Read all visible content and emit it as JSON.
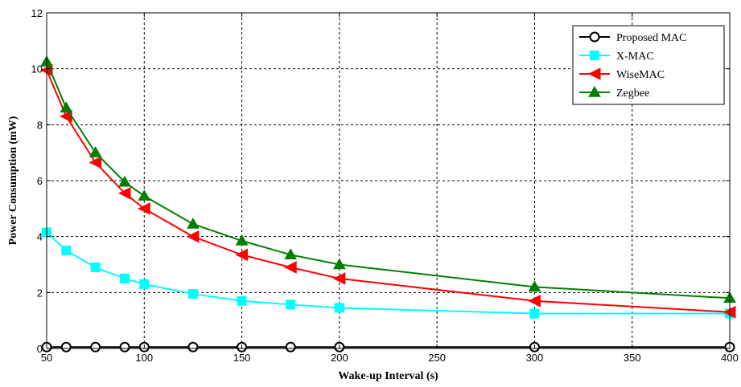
{
  "chart_data": {
    "type": "line",
    "title": "",
    "xlabel": "Wake-up Interval (s)",
    "ylabel": "Power Consumption (mW)",
    "xlim": [
      50,
      400
    ],
    "ylim": [
      0,
      12
    ],
    "xticks": [
      50,
      100,
      150,
      200,
      250,
      300,
      350,
      400
    ],
    "yticks": [
      0,
      2,
      4,
      6,
      8,
      10,
      12
    ],
    "grid": true,
    "legend_position": "top-right",
    "x": [
      50,
      60,
      75,
      90,
      100,
      125,
      150,
      175,
      200,
      300,
      400
    ],
    "series": [
      {
        "name": "Proposed MAC",
        "color": "#000000",
        "marker": "circle",
        "values": [
          0.05,
          0.05,
          0.05,
          0.05,
          0.05,
          0.05,
          0.05,
          0.05,
          0.05,
          0.05,
          0.05
        ]
      },
      {
        "name": "X-MAC",
        "color": "#00ffff",
        "marker": "square",
        "values": [
          4.15,
          3.5,
          2.9,
          2.5,
          2.3,
          1.95,
          1.7,
          1.57,
          1.45,
          1.25,
          1.25
        ]
      },
      {
        "name": "WiseMAC",
        "color": "#ff0000",
        "marker": "triangle-left",
        "values": [
          9.95,
          8.3,
          6.65,
          5.55,
          5.0,
          4.0,
          3.35,
          2.9,
          2.5,
          1.7,
          1.3
        ]
      },
      {
        "name": "Zegbee",
        "color": "#008000",
        "marker": "triangle-up",
        "values": [
          10.25,
          8.6,
          7.0,
          5.95,
          5.45,
          4.45,
          3.85,
          3.35,
          3.0,
          2.2,
          1.8
        ]
      }
    ]
  }
}
